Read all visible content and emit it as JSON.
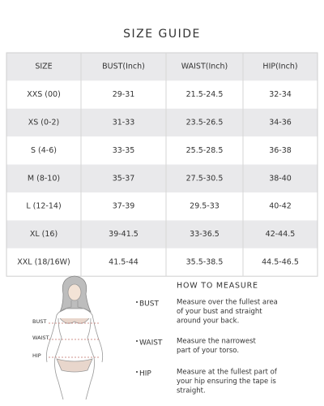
{
  "header": {
    "title": "SIZE GUIDE"
  },
  "table": {
    "columns": [
      "SIZE",
      "BUST(Inch)",
      "WAIST(Inch)",
      "HIP(Inch)"
    ],
    "rows": [
      [
        "XXS (00)",
        "29-31",
        "21.5-24.5",
        "32-34"
      ],
      [
        "XS (0-2)",
        "31-33",
        "23.5-26.5",
        "34-36"
      ],
      [
        "S (4-6)",
        "33-35",
        "25.5-28.5",
        "36-38"
      ],
      [
        "M (8-10)",
        "35-37",
        "27.5-30.5",
        "38-40"
      ],
      [
        "L (12-14)",
        "37-39",
        "29.5-33",
        "40-42"
      ],
      [
        "XL (16)",
        "39-41.5",
        "33-36.5",
        "42-44.5"
      ],
      [
        "XXL (18/16W)",
        "41.5-44",
        "35.5-38.5",
        "44.5-46.5"
      ]
    ]
  },
  "figure": {
    "labels": [
      "BUST",
      "WAIST",
      "HIP"
    ]
  },
  "how_to_measure": {
    "title": "HOW TO MEASURE",
    "items": [
      {
        "label": "BUST",
        "description": [
          "Measure over the fullest area",
          "of your bust and straight",
          "around your back."
        ]
      },
      {
        "label": "WAIST",
        "description": [
          "Measure the narrowest",
          "part of your torso."
        ]
      },
      {
        "label": "HIP",
        "description": [
          "Measure at the fullest part of",
          "your hip ensuring the tape is",
          "straight."
        ]
      }
    ]
  }
}
